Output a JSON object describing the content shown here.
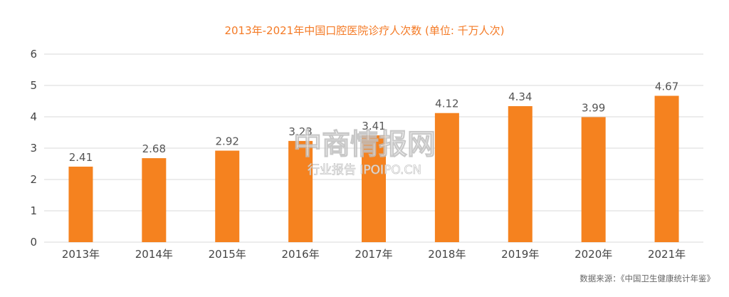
{
  "title": "2013年-2021年中国口腔医院诊疗人次数 (单位: 千万人次)",
  "source": "数据来源：《中国卫生健康统计年鉴》",
  "watermark": {
    "logo_text": "中商情报网",
    "sub_text": "行业报告 IPOIPO.CN"
  },
  "colors": {
    "bar": "#f5821f",
    "title": "#f47a25",
    "grid": "#d9d9d9",
    "text": "#444444"
  },
  "chart_data": {
    "type": "bar",
    "title": "2013年-2021年中国口腔医院诊疗人次数 (单位: 千万人次)",
    "categories": [
      "2013年",
      "2014年",
      "2015年",
      "2016年",
      "2017年",
      "2018年",
      "2019年",
      "2020年",
      "2021年"
    ],
    "values": [
      2.41,
      2.68,
      2.92,
      3.23,
      3.41,
      4.12,
      4.34,
      3.99,
      4.67
    ],
    "value_labels": [
      "2.41",
      "2.68",
      "2.92",
      "3.23",
      "3.41",
      "4.12",
      "4.34",
      "3.99",
      "4.67"
    ],
    "ylim": [
      0,
      6
    ],
    "yticks": [
      "0",
      "1",
      "2",
      "3",
      "4",
      "5",
      "6"
    ],
    "grid": true,
    "xlabel": "",
    "ylabel": ""
  }
}
